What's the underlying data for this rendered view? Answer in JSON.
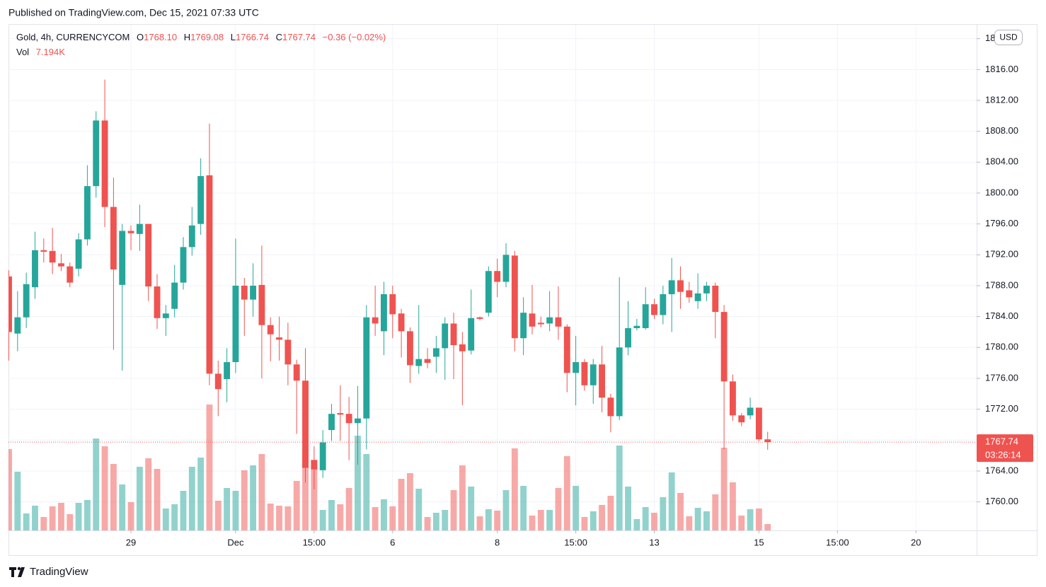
{
  "page": {
    "published": "Published on TradingView.com, Dec 15, 2021 07:33 UTC",
    "brand": "TradingView"
  },
  "chart_data": {
    "type": "candlestick",
    "symbol": "Gold, 4h, CURRENCYCOM",
    "legend": {
      "open_label": "O",
      "open": "1768.10",
      "high_label": "H",
      "high": "1769.08",
      "low_label": "L",
      "low": "1766.74",
      "close_label": "C",
      "close": "1767.74",
      "change": "−0.36 (−0.02%)",
      "volume_label": "Vol",
      "volume": "7.194K"
    },
    "currency": "USD",
    "last_price": 1767.74,
    "countdown": "03:26:14",
    "up_color": "#26a69a",
    "down_color": "#ef5350",
    "open": [
      1789.2,
      1781.8,
      1783.9,
      1787.8,
      1792.6,
      1792.5,
      1790.9,
      1790.5,
      1790.2,
      1794.0,
      1800.9,
      1809.4,
      1798.2,
      1788.1,
      1795.1,
      1794.7,
      1796.0,
      1787.9,
      1783.8,
      1785.0,
      1788.4,
      1793.0,
      1796.0,
      1802.3,
      1776.6,
      1775.9,
      1778.1,
      1788.0,
      1786.2,
      1788.1,
      1782.9,
      1781.3,
      1781.0,
      1777.8,
      1775.7,
      1765.4,
      1764.1,
      1769.3,
      1771.5,
      1771.4,
      1770.2,
      1770.8,
      1783.9,
      1782.1,
      1786.9,
      1784.4,
      1782.1,
      1777.6,
      1778.5,
      1778.8,
      1779.9,
      1783.1,
      1780.4,
      1779.6,
      1783.9,
      1784.5,
      1789.9,
      1788.5,
      1791.9,
      1781.2,
      1784.4,
      1783.2,
      1783.1,
      1783.9,
      1782.7,
      1776.7,
      1778.1,
      1775.1,
      1777.8,
      1773.5,
      1771.1,
      1780.0,
      1782.5,
      1782.5,
      1785.6,
      1784.2,
      1786.9,
      1788.7,
      1787.4,
      1786.0,
      1787.0,
      1788.0,
      1784.6,
      1775.6,
      1771.2,
      1771.2,
      1772.2,
      1768.1
    ],
    "high": [
      1790.0,
      1787.3,
      1789.7,
      1795.0,
      1794.1,
      1795.5,
      1792.1,
      1791.0,
      1794.8,
      1803.6,
      1810.6,
      1814.7,
      1802.0,
      1796.0,
      1795.8,
      1798.5,
      1796.0,
      1789.5,
      1785.5,
      1790.7,
      1794.3,
      1798.2,
      1804.5,
      1809.0,
      1778.3,
      1779.9,
      1794.1,
      1789.0,
      1790.9,
      1793.2,
      1783.9,
      1784.0,
      1783.2,
      1778.4,
      1779.9,
      1767.2,
      1769.3,
      1772.7,
      1775.1,
      1773.6,
      1775.0,
      1785.5,
      1788.0,
      1788.5,
      1788.0,
      1785.0,
      1782.6,
      1785.5,
      1779.9,
      1781.5,
      1783.9,
      1784.5,
      1782.0,
      1787.5,
      1784.0,
      1790.5,
      1791.5,
      1793.5,
      1792.5,
      1786.5,
      1788.1,
      1784.0,
      1787.3,
      1787.9,
      1783.0,
      1781.5,
      1778.5,
      1778.5,
      1780.2,
      1774.0,
      1789.1,
      1786.0,
      1783.7,
      1787.8,
      1786.3,
      1788.0,
      1791.6,
      1790.5,
      1788.5,
      1789.6,
      1788.5,
      1788.4,
      1785.5,
      1776.5,
      1771.5,
      1773.5,
      1772.2,
      1769.08
    ],
    "low": [
      1778.3,
      1779.5,
      1782.5,
      1786.3,
      1791.0,
      1789.5,
      1789.9,
      1787.8,
      1789.2,
      1793.2,
      1799.4,
      1795.6,
      1779.7,
      1777.0,
      1792.6,
      1792.5,
      1786.0,
      1782.4,
      1781.5,
      1783.9,
      1787.5,
      1791.9,
      1794.6,
      1775.1,
      1771.1,
      1772.9,
      1776.7,
      1781.5,
      1784.0,
      1776.0,
      1778.2,
      1778.3,
      1775.1,
      1768.8,
      1762.5,
      1761.6,
      1763.1,
      1767.9,
      1767.9,
      1765.4,
      1764.8,
      1766.8,
      1781.5,
      1779.0,
      1781.2,
      1778.7,
      1775.4,
      1776.6,
      1777.3,
      1776.7,
      1775.8,
      1775.9,
      1772.5,
      1779.1,
      1783.5,
      1784.0,
      1786.5,
      1787.8,
      1779.5,
      1779.0,
      1781.7,
      1782.6,
      1782.1,
      1781.0,
      1774.2,
      1772.5,
      1774.4,
      1772.7,
      1771.6,
      1769.0,
      1770.6,
      1779.0,
      1782.2,
      1782.3,
      1783.7,
      1783.0,
      1782.0,
      1785.0,
      1785.8,
      1785.0,
      1786.0,
      1781.2,
      1766.8,
      1770.5,
      1769.8,
      1770.7,
      1767.8,
      1766.74
    ],
    "close": [
      1782.0,
      1783.9,
      1788.2,
      1792.6,
      1792.4,
      1791.0,
      1790.5,
      1788.4,
      1794.0,
      1800.9,
      1809.4,
      1798.2,
      1790.1,
      1795.1,
      1794.8,
      1796.0,
      1787.9,
      1783.8,
      1784.4,
      1788.4,
      1793.0,
      1795.8,
      1802.2,
      1776.6,
      1774.6,
      1778.1,
      1788.0,
      1786.2,
      1788.0,
      1782.9,
      1781.7,
      1781.0,
      1777.8,
      1775.7,
      1764.4,
      1764.2,
      1767.7,
      1771.4,
      1771.3,
      1770.2,
      1770.8,
      1783.9,
      1783.1,
      1786.9,
      1784.3,
      1782.1,
      1777.7,
      1778.5,
      1778.0,
      1779.9,
      1783.1,
      1780.3,
      1779.5,
      1783.8,
      1783.7,
      1789.9,
      1788.5,
      1792.0,
      1781.2,
      1784.5,
      1782.7,
      1783.0,
      1783.9,
      1782.7,
      1776.7,
      1778.1,
      1775.1,
      1777.8,
      1773.5,
      1771.1,
      1780.0,
      1782.5,
      1782.8,
      1785.6,
      1784.2,
      1786.9,
      1788.7,
      1787.2,
      1786.5,
      1787.0,
      1788.0,
      1784.6,
      1775.6,
      1771.2,
      1770.3,
      1772.2,
      1768.1,
      1767.74
    ],
    "volume": [
      92000,
      66400,
      19200,
      28000,
      15200,
      27200,
      31200,
      18400,
      31200,
      34400,
      104000,
      95200,
      75200,
      52000,
      32000,
      72000,
      81600,
      69600,
      24800,
      29600,
      44800,
      72000,
      82400,
      142400,
      33600,
      48000,
      44800,
      68000,
      73600,
      86400,
      30400,
      28000,
      27200,
      56000,
      91200,
      80000,
      23200,
      34400,
      29600,
      48000,
      107200,
      86400,
      26400,
      35200,
      27200,
      58400,
      64800,
      47200,
      15200,
      20000,
      23200,
      45600,
      73600,
      49600,
      16000,
      24000,
      22400,
      45600,
      92800,
      50400,
      16800,
      23200,
      23200,
      48000,
      84000,
      50400,
      15200,
      21600,
      28800,
      39200,
      96000,
      49600,
      12800,
      26400,
      20000,
      37600,
      65600,
      42400,
      16000,
      25600,
      21600,
      40800,
      93600,
      54400,
      16800,
      24000,
      24800,
      7194
    ],
    "xlim": [
      0,
      111
    ],
    "xticks": [
      {
        "value": 14,
        "label": "29"
      },
      {
        "value": 26,
        "label": "Dec"
      },
      {
        "value": 35,
        "label": "15:00"
      },
      {
        "value": 44,
        "label": "6"
      },
      {
        "value": 56,
        "label": "8"
      },
      {
        "value": 65,
        "label": "15:00"
      },
      {
        "value": 74,
        "label": "13"
      },
      {
        "value": 86,
        "label": "15"
      },
      {
        "value": 95,
        "label": "15:00"
      },
      {
        "value": 104,
        "label": "20"
      }
    ],
    "ylim": [
      1756.3,
      1821.8
    ],
    "yticks": [
      {
        "value": 1760,
        "label": "1760.00"
      },
      {
        "value": 1764,
        "label": "1764.00"
      },
      {
        "value": 1768,
        "label": "1768.00"
      },
      {
        "value": 1772,
        "label": "1772.00"
      },
      {
        "value": 1776,
        "label": "1776.00"
      },
      {
        "value": 1780,
        "label": "1780.00"
      },
      {
        "value": 1784,
        "label": "1784.00"
      },
      {
        "value": 1788,
        "label": "1788.00"
      },
      {
        "value": 1792,
        "label": "1792.00"
      },
      {
        "value": 1796,
        "label": "1796.00"
      },
      {
        "value": 1800,
        "label": "1800.00"
      },
      {
        "value": 1804,
        "label": "1804.00"
      },
      {
        "value": 1808,
        "label": "1808.00"
      },
      {
        "value": 1812,
        "label": "1812.00"
      },
      {
        "value": 1816,
        "label": "1816.00"
      },
      {
        "value": 1820,
        "label": "1820.00"
      }
    ],
    "grid": true
  }
}
